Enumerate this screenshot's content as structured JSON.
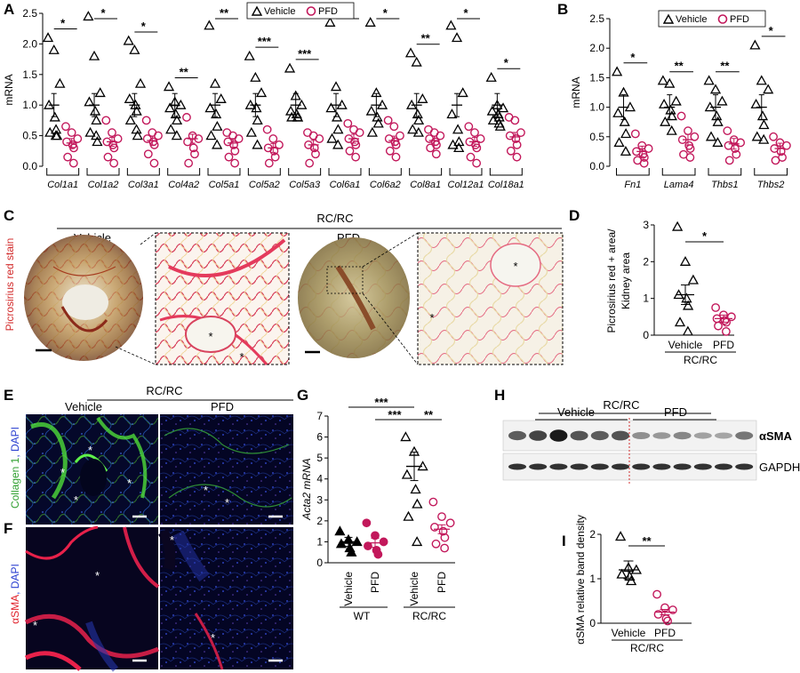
{
  "panels": {
    "A": "A",
    "B": "B",
    "C": "C",
    "D": "D",
    "E": "E",
    "F": "F",
    "G": "G",
    "H": "H",
    "I": "I"
  },
  "legend": {
    "vehicle": "Vehicle",
    "pfd": "PFD"
  },
  "colors": {
    "vehicle": "#000000",
    "pfd": "#c2185b",
    "redline": "#d32f2f"
  },
  "chart_data": [
    {
      "id": "A",
      "type": "scatter",
      "ylabel": "mRNA",
      "ylim": [
        0,
        2.5
      ],
      "yticks": [
        "0.0",
        "0.5",
        "1.0",
        "1.5",
        "2.0",
        "2.5"
      ],
      "categories": [
        "Col1a1",
        "Col1a2",
        "Col3a1",
        "Col4a2",
        "Col5a1",
        "Col5a2",
        "Col5a3",
        "Col6a1",
        "Col6a2",
        "Col8a1",
        "Col12a1",
        "Col18a1"
      ],
      "sig": [
        "*",
        "*",
        "*",
        "**",
        "**",
        "***",
        "***",
        "*",
        "*",
        "**",
        "*",
        "*"
      ],
      "series": [
        {
          "name": "Vehicle",
          "mean": [
            1.0,
            1.0,
            1.0,
            1.0,
            1.0,
            1.0,
            1.0,
            1.0,
            1.0,
            1.0,
            1.0,
            1.0
          ],
          "points": [
            [
              2.1,
              1.9,
              1.35,
              1.0,
              0.8,
              0.6,
              0.55,
              0.5,
              0.5
            ],
            [
              2.45,
              1.8,
              1.2,
              1.05,
              0.9,
              0.75,
              0.55,
              0.5,
              0.4
            ],
            [
              2.05,
              1.9,
              1.35,
              1.1,
              1.0,
              0.9,
              0.75,
              0.6,
              0.5
            ],
            [
              1.3,
              1.05,
              1.0,
              0.95,
              0.85,
              0.75,
              0.6,
              0.5
            ],
            [
              2.3,
              1.35,
              1.1,
              0.95,
              0.85,
              0.65,
              0.5,
              0.35
            ],
            [
              1.8,
              1.45,
              1.2,
              1.0,
              0.95,
              0.75,
              0.55,
              0.35
            ],
            [
              1.6,
              1.15,
              1.0,
              0.9,
              0.85,
              0.8,
              0.8,
              0.8
            ],
            [
              2.35,
              1.3,
              1.0,
              0.95,
              0.8,
              0.6,
              0.45,
              0.35
            ],
            [
              2.35,
              1.2,
              1.0,
              0.9,
              0.8,
              0.7,
              0.55
            ],
            [
              1.85,
              1.7,
              1.1,
              1.0,
              0.85,
              0.75,
              0.6,
              0.55
            ],
            [
              2.3,
              2.1,
              1.2,
              0.85,
              0.6,
              0.4,
              0.35,
              0.3
            ],
            [
              1.45,
              1.0,
              0.95,
              0.9,
              0.85,
              0.8,
              0.75,
              0.7,
              0.65
            ]
          ]
        },
        {
          "name": "PFD",
          "mean": [
            0.38,
            0.4,
            0.42,
            0.45,
            0.38,
            0.3,
            0.35,
            0.45,
            0.42,
            0.42,
            0.4,
            0.48
          ],
          "points": [
            [
              0.65,
              0.55,
              0.45,
              0.4,
              0.35,
              0.3,
              0.15,
              0.05
            ],
            [
              0.75,
              0.55,
              0.45,
              0.4,
              0.35,
              0.3,
              0.15,
              0.05
            ],
            [
              0.75,
              0.55,
              0.5,
              0.45,
              0.4,
              0.35,
              0.2,
              0.05
            ],
            [
              0.8,
              0.5,
              0.45,
              0.4,
              0.3,
              0.2,
              0.05
            ],
            [
              0.55,
              0.5,
              0.45,
              0.4,
              0.35,
              0.25,
              0.15,
              0.05
            ],
            [
              0.6,
              0.45,
              0.35,
              0.3,
              0.25,
              0.15,
              0.05
            ],
            [
              0.55,
              0.5,
              0.45,
              0.35,
              0.3,
              0.2,
              0.05
            ],
            [
              0.7,
              0.6,
              0.55,
              0.45,
              0.4,
              0.35,
              0.25,
              0.15
            ],
            [
              0.75,
              0.65,
              0.5,
              0.45,
              0.4,
              0.35,
              0.25,
              0.15
            ],
            [
              0.6,
              0.55,
              0.5,
              0.45,
              0.4,
              0.35,
              0.3,
              0.2
            ],
            [
              0.65,
              0.55,
              0.45,
              0.4,
              0.35,
              0.3,
              0.15,
              0.05
            ],
            [
              0.8,
              0.75,
              0.55,
              0.5,
              0.45,
              0.35,
              0.25,
              0.15
            ]
          ]
        }
      ]
    },
    {
      "id": "B",
      "type": "scatter",
      "ylabel": "mRNA",
      "ylim": [
        0,
        2.5
      ],
      "yticks": [
        "0.0",
        "0.5",
        "1.0",
        "1.5",
        "2.0",
        "2.5"
      ],
      "categories": [
        "Fn1",
        "Lama4",
        "Thbs1",
        "Thbs2"
      ],
      "sig": [
        "*",
        "**",
        "**",
        "*"
      ],
      "series": [
        {
          "name": "Vehicle",
          "mean": [
            1.0,
            1.0,
            1.0,
            1.0
          ],
          "points": [
            [
              1.6,
              1.25,
              1.0,
              0.9,
              0.75,
              0.55,
              0.4,
              0.25
            ],
            [
              1.45,
              1.4,
              1.1,
              1.05,
              0.95,
              0.85,
              0.75,
              0.6
            ],
            [
              1.45,
              1.3,
              1.1,
              1.0,
              0.85,
              0.75,
              0.5,
              0.4
            ],
            [
              2.05,
              1.45,
              1.3,
              1.05,
              0.85,
              0.7,
              0.5,
              0.45
            ]
          ]
        },
        {
          "name": "PFD",
          "mean": [
            0.25,
            0.45,
            0.38,
            0.3
          ],
          "points": [
            [
              0.55,
              0.35,
              0.3,
              0.25,
              0.2,
              0.15,
              0.1,
              0.05
            ],
            [
              0.85,
              0.6,
              0.5,
              0.45,
              0.35,
              0.3,
              0.2,
              0.15
            ],
            [
              0.6,
              0.45,
              0.4,
              0.35,
              0.3,
              0.2,
              0.1
            ],
            [
              0.5,
              0.4,
              0.35,
              0.3,
              0.25,
              0.15,
              0.1
            ]
          ]
        }
      ]
    },
    {
      "id": "D",
      "type": "scatter",
      "ylabel": "Picrosirius red + area/\nKidney area",
      "ylim": [
        0,
        3
      ],
      "yticks": [
        "0",
        "1",
        "2",
        "3"
      ],
      "categories": [
        "Vehicle",
        "PFD"
      ],
      "group": "RC/RC",
      "sig": [
        "*"
      ],
      "series": [
        {
          "name": "Vehicle",
          "mean": [
            1.1
          ],
          "points": [
            [
              2.95,
              2.0,
              1.5,
              1.1,
              1.0,
              0.8,
              0.35,
              0.1
            ]
          ]
        },
        {
          "name": "PFD",
          "mean": [
            0.45
          ],
          "points": [
            [
              0.75,
              0.55,
              0.5,
              0.45,
              0.4,
              0.35,
              0.25,
              0.1
            ]
          ]
        }
      ]
    },
    {
      "id": "G",
      "type": "scatter",
      "ylabel": "Acta2 mRNA",
      "ylim": [
        0,
        7
      ],
      "yticks": [
        "0",
        "1",
        "2",
        "3",
        "4",
        "5",
        "6",
        "7"
      ],
      "categories": [
        "Vehicle",
        "PFD",
        "Vehicle",
        "PFD"
      ],
      "groups": [
        "WT",
        "RC/RC"
      ],
      "sig": [
        "***",
        "***",
        "**"
      ],
      "series": [
        {
          "name": "WT Vehicle",
          "mean": [
            1.0
          ],
          "points": [
            [
              1.5,
              1.1,
              1.0,
              0.9,
              0.7,
              0.5
            ]
          ]
        },
        {
          "name": "WT PFD",
          "mean": [
            0.95
          ],
          "points": [
            [
              1.9,
              1.3,
              1.0,
              0.8,
              0.6,
              0.4
            ]
          ]
        },
        {
          "name": "RC/RC Vehicle",
          "mean": [
            4.6
          ],
          "points": [
            [
              6.0,
              5.3,
              4.6,
              4.2,
              3.5,
              2.8,
              2.2,
              1.0
            ]
          ]
        },
        {
          "name": "RC/RC PFD",
          "mean": [
            1.6
          ],
          "points": [
            [
              2.9,
              2.2,
              1.9,
              1.7,
              1.5,
              1.2,
              0.9,
              0.7
            ]
          ]
        }
      ]
    },
    {
      "id": "I",
      "type": "scatter",
      "ylabel": "αSMA relative band density",
      "ylim": [
        0,
        2
      ],
      "yticks": [
        "0",
        "1",
        "2"
      ],
      "categories": [
        "Vehicle",
        "PFD"
      ],
      "group": "RC/RC",
      "sig": [
        "**"
      ],
      "series": [
        {
          "name": "Vehicle",
          "mean": [
            1.2
          ],
          "points": [
            [
              1.95,
              1.25,
              1.2,
              1.1,
              1.05,
              0.95
            ]
          ]
        },
        {
          "name": "PFD",
          "mean": [
            0.25
          ],
          "points": [
            [
              0.65,
              0.35,
              0.3,
              0.2,
              0.1,
              0.05
            ]
          ]
        }
      ]
    }
  ],
  "panelC": {
    "group": "RC/RC",
    "vehicle": "Vehicle",
    "pfd": "PFD",
    "ylabel": "Picrosirius red stain",
    "asterisk": "*"
  },
  "panelE": {
    "group": "RC/RC",
    "vehicle": "Vehicle",
    "pfd": "PFD",
    "ylabel_a": "Collagen 1",
    "ylabel_b": ", DAPI"
  },
  "panelF": {
    "ylabel_a": "αSMA",
    "ylabel_b": ", DAPI",
    "asterisk": "*"
  },
  "panelH": {
    "group": "RC/RC",
    "vehicle": "Vehicle",
    "pfd": "PFD",
    "band1": "αSMA",
    "band2": "GAPDH"
  }
}
